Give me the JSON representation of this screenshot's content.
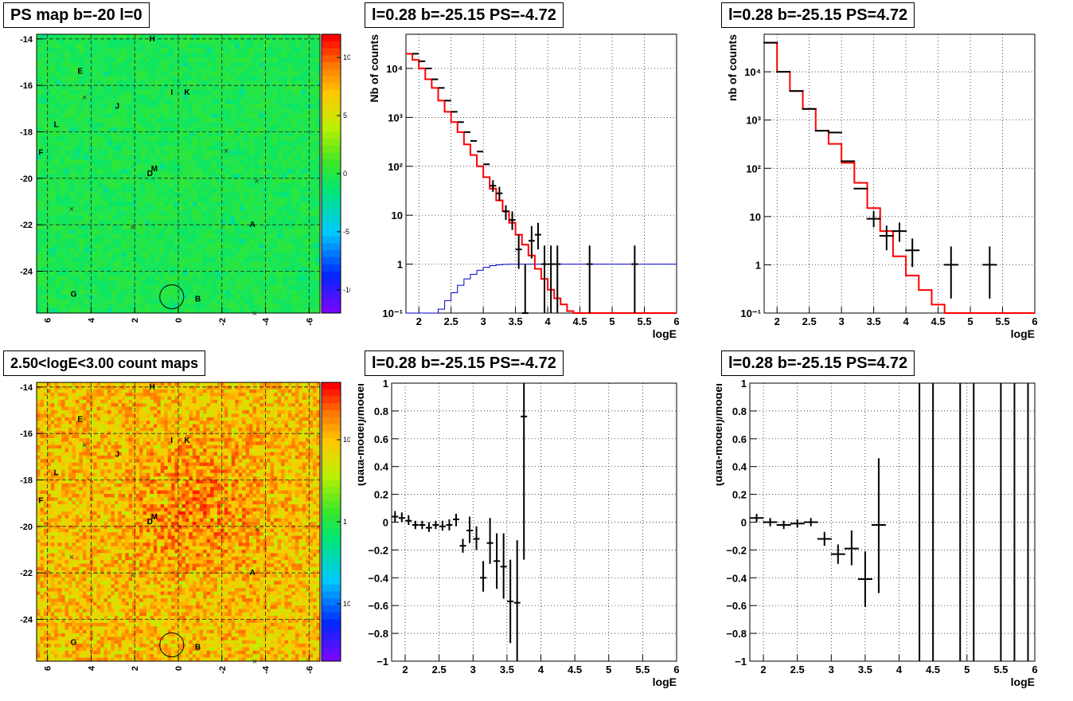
{
  "panels": [
    {
      "id": "map1",
      "title": "PS map b=-20 l=0"
    },
    {
      "id": "spec1",
      "title": "l=0.28 b=-25.15 PS=-4.72"
    },
    {
      "id": "spec2",
      "title": "l=0.28 b=-25.15 PS=4.72"
    },
    {
      "id": "map2",
      "title": "2.50<logE<3.00 count maps"
    },
    {
      "id": "res1",
      "title": "l=0.28 b=-25.15 PS=-4.72"
    },
    {
      "id": "res2",
      "title": "l=0.28 b=-25.15 PS=4.72"
    }
  ],
  "chart_data": [
    {
      "type": "heatmap",
      "panel": "map1",
      "title": "PS map b=-20 l=0",
      "xlim": [
        6.5,
        -6.5
      ],
      "ylim": [
        -25.8,
        -13.8
      ],
      "xticks": [
        "6",
        "4",
        "2",
        "0",
        "-2",
        "-4",
        "-6"
      ],
      "xtick_values": [
        6,
        4,
        2,
        0,
        -2,
        -4,
        -6
      ],
      "yticks": [
        "-14",
        "-16",
        "-18",
        "-20",
        "-22",
        "-24"
      ],
      "ytick_values": [
        -14,
        -16,
        -18,
        -20,
        -22,
        -24
      ],
      "colorscale": {
        "type": "linear",
        "range": [
          -12,
          12
        ],
        "ticks": [
          "10",
          "5",
          "0",
          "-5",
          "-10"
        ],
        "tick_values": [
          10,
          5,
          0,
          -5,
          -10
        ]
      },
      "background_color": "#33e048",
      "sources": [
        {
          "label": "H",
          "x": 1.2,
          "y": -14.1
        },
        {
          "label": "E",
          "x": 4.5,
          "y": -15.5
        },
        {
          "label": "I",
          "x": 0.3,
          "y": -16.4
        },
        {
          "label": "K",
          "x": -0.4,
          "y": -16.4
        },
        {
          "label": "J",
          "x": 2.8,
          "y": -17.0
        },
        {
          "label": "L",
          "x": 5.6,
          "y": -17.8
        },
        {
          "label": "F",
          "x": 6.3,
          "y": -19.0
        },
        {
          "label": "D",
          "x": 1.3,
          "y": -19.9
        },
        {
          "label": "M",
          "x": 1.1,
          "y": -19.7
        },
        {
          "label": "A",
          "x": -3.4,
          "y": -22.1
        },
        {
          "label": "G",
          "x": 4.8,
          "y": -25.1
        },
        {
          "label": "B",
          "x": -0.9,
          "y": -25.3
        }
      ],
      "crosses": [
        {
          "x": 4.3,
          "y": -16.5
        },
        {
          "x": -2.2,
          "y": -18.8
        },
        {
          "x": -3.6,
          "y": -20.1
        },
        {
          "x": 4.9,
          "y": -21.3
        },
        {
          "x": 2.1,
          "y": -22.1
        },
        {
          "x": -3.5,
          "y": -25.8
        }
      ],
      "circle": {
        "x": 0.3,
        "y": -25.1,
        "r": 0.55
      }
    },
    {
      "type": "line",
      "panel": "spec1",
      "title": "l=0.28 b=-25.15 PS=-4.72",
      "xlabel": "logE",
      "ylabel": "Nb of counts",
      "yscale": "log",
      "xlim": [
        1.8,
        6
      ],
      "ylim": [
        0.1,
        50000
      ],
      "xticks": [
        "2",
        "2.5",
        "3",
        "3.5",
        "4",
        "4.5",
        "5",
        "5.5",
        "6"
      ],
      "xtick_values": [
        2,
        2.5,
        3,
        3.5,
        4,
        4.5,
        5,
        5.5,
        6
      ],
      "yticks": [
        "10⁻¹",
        "1",
        "10",
        "10²",
        "10³",
        "10⁴"
      ],
      "ytick_values": [
        0.1,
        1,
        10,
        100,
        1000,
        10000
      ],
      "grid": true,
      "series": [
        {
          "kind": "step",
          "color": "#ff0000",
          "edges": [
            1.8,
            1.9,
            2.0,
            2.1,
            2.2,
            2.3,
            2.4,
            2.5,
            2.6,
            2.7,
            2.8,
            2.9,
            3.0,
            3.1,
            3.2,
            3.3,
            3.4,
            3.5,
            3.6,
            3.7,
            3.8,
            3.9,
            4.0,
            4.1,
            4.2,
            4.3,
            4.4,
            6.0
          ],
          "values": [
            20000,
            15000,
            10000,
            6000,
            4000,
            2200,
            1300,
            800,
            500,
            280,
            170,
            100,
            60,
            35,
            20,
            12,
            7,
            4,
            2.5,
            1.5,
            0.8,
            0.5,
            0.3,
            0.2,
            0.15,
            0.11,
            0.1
          ]
        },
        {
          "kind": "step",
          "color": "#0000cc",
          "edges": [
            1.8,
            2.2,
            2.3,
            2.4,
            2.5,
            2.6,
            2.7,
            2.8,
            2.9,
            3.0,
            3.1,
            3.2,
            3.3,
            3.4,
            3.5,
            6.0
          ],
          "values": [
            0.1,
            0.1,
            0.12,
            0.18,
            0.26,
            0.37,
            0.5,
            0.62,
            0.75,
            0.86,
            0.93,
            0.97,
            0.99,
            1.0,
            1.0
          ]
        },
        {
          "kind": "points",
          "color": "#000000",
          "x": [
            1.95,
            2.05,
            2.15,
            2.25,
            2.35,
            2.45,
            2.55,
            2.65,
            2.75,
            2.85,
            2.95,
            3.05,
            3.15,
            3.25,
            3.35,
            3.45,
            3.55,
            3.65,
            3.75,
            3.85,
            3.95,
            4.05,
            4.15,
            4.65,
            5.35
          ],
          "y": [
            20000,
            14000,
            10000,
            6000,
            4000,
            2200,
            1300,
            800,
            500,
            330,
            200,
            110,
            40,
            28,
            12,
            8,
            2,
            0.06,
            3,
            4,
            1,
            1,
            1,
            1,
            1
          ],
          "ylo": [
            0,
            0,
            0,
            0,
            0,
            0,
            0,
            0,
            0,
            0,
            0,
            0,
            30,
            20,
            8,
            5,
            0.8,
            0.06,
            1.3,
            2,
            0.1,
            0.1,
            0.1,
            0.1,
            0.1
          ],
          "yhi": [
            0,
            0,
            0,
            0,
            0,
            0,
            0,
            0,
            0,
            0,
            0,
            0,
            52,
            38,
            16,
            12,
            4,
            1,
            6,
            7,
            2.4,
            2.4,
            2.4,
            2.4,
            2.4
          ]
        }
      ]
    },
    {
      "type": "line",
      "panel": "spec2",
      "title": "l=0.28 b=-25.15 PS=4.72",
      "xlabel": "logE",
      "ylabel": "nb of counts",
      "yscale": "log",
      "xlim": [
        1.8,
        6
      ],
      "ylim": [
        0.1,
        60000
      ],
      "xticks": [
        "2",
        "2.5",
        "3",
        "3.5",
        "4",
        "4.5",
        "5",
        "5.5",
        "6"
      ],
      "xtick_values": [
        2,
        2.5,
        3,
        3.5,
        4,
        4.5,
        5,
        5.5,
        6
      ],
      "yticks": [
        "10⁻¹",
        "1",
        "10",
        "10²",
        "10³",
        "10⁴"
      ],
      "ytick_values": [
        0.1,
        1,
        10,
        100,
        1000,
        10000
      ],
      "grid": true,
      "series": [
        {
          "kind": "step",
          "color": "#ff0000",
          "edges": [
            1.8,
            2.0,
            2.2,
            2.4,
            2.6,
            2.8,
            3.0,
            3.2,
            3.4,
            3.6,
            3.8,
            4.0,
            4.2,
            4.4,
            4.6,
            6.0
          ],
          "values": [
            40000,
            10000,
            4000,
            1700,
            600,
            320,
            130,
            50,
            15,
            5,
            1.5,
            0.6,
            0.3,
            0.15,
            0.1
          ]
        },
        {
          "kind": "points",
          "color": "#000000",
          "x": [
            1.9,
            2.1,
            2.3,
            2.5,
            2.7,
            2.9,
            3.1,
            3.3,
            3.5,
            3.7,
            3.9,
            4.1,
            4.7,
            5.3
          ],
          "y": [
            40000,
            10000,
            4000,
            1700,
            600,
            550,
            140,
            38,
            9,
            4,
            5,
            2,
            1,
            1
          ],
          "ylo": [
            0,
            0,
            0,
            0,
            0,
            0,
            0,
            0,
            6,
            2,
            3,
            0.9,
            0.2,
            0.2
          ],
          "yhi": [
            0,
            0,
            0,
            0,
            0,
            0,
            0,
            0,
            13,
            6.5,
            7.5,
            3.5,
            2.4,
            2.4
          ]
        }
      ]
    },
    {
      "type": "heatmap",
      "panel": "map2",
      "title": "2.50<logE<3.00 count maps",
      "xlim": [
        6.5,
        -6.5
      ],
      "ylim": [
        -25.8,
        -13.8
      ],
      "xticks": [
        "6",
        "4",
        "2",
        "0",
        "-2",
        "-4",
        "-6"
      ],
      "xtick_values": [
        6,
        4,
        2,
        0,
        -2,
        -4,
        -6
      ],
      "yticks": [
        "-14",
        "-16",
        "-18",
        "-20",
        "-22",
        "-24"
      ],
      "ytick_values": [
        -14,
        -16,
        -18,
        -20,
        -22,
        -24
      ],
      "colorscale": {
        "type": "log",
        "range": [
          0.02,
          50
        ],
        "ticks": [
          "10",
          "1",
          "10⁻¹"
        ],
        "tick_values": [
          10,
          1,
          0.1
        ]
      },
      "background_color": "#f28a2a",
      "sources": [
        {
          "label": "H",
          "x": 1.2,
          "y": -14.1
        },
        {
          "label": "E",
          "x": 4.5,
          "y": -15.5
        },
        {
          "label": "I",
          "x": 0.3,
          "y": -16.4
        },
        {
          "label": "K",
          "x": -0.4,
          "y": -16.4
        },
        {
          "label": "J",
          "x": 2.8,
          "y": -17.0
        },
        {
          "label": "L",
          "x": 5.6,
          "y": -17.8
        },
        {
          "label": "F",
          "x": 6.3,
          "y": -19.0
        },
        {
          "label": "D",
          "x": 1.3,
          "y": -19.9
        },
        {
          "label": "M",
          "x": 1.1,
          "y": -19.7
        },
        {
          "label": "A",
          "x": -3.4,
          "y": -22.1
        },
        {
          "label": "G",
          "x": 4.8,
          "y": -25.1
        },
        {
          "label": "B",
          "x": -0.9,
          "y": -25.3
        }
      ],
      "crosses": [
        {
          "x": 4.3,
          "y": -16.5
        },
        {
          "x": -2.2,
          "y": -18.8
        },
        {
          "x": -3.6,
          "y": -20.1
        },
        {
          "x": 4.9,
          "y": -21.3
        },
        {
          "x": 2.1,
          "y": -22.1
        },
        {
          "x": -3.5,
          "y": -25.8
        }
      ],
      "circle": {
        "x": 0.3,
        "y": -25.1,
        "r": 0.55
      }
    },
    {
      "type": "scatter",
      "panel": "res1",
      "title": "l=0.28 b=-25.15 PS=-4.72",
      "xlabel": "logE",
      "ylabel": "(data-model)/model",
      "xlim": [
        1.8,
        6
      ],
      "ylim": [
        -1,
        1
      ],
      "xticks": [
        "2",
        "2.5",
        "3",
        "3.5",
        "4",
        "4.5",
        "5",
        "5.5",
        "6"
      ],
      "xtick_values": [
        2,
        2.5,
        3,
        3.5,
        4,
        4.5,
        5,
        5.5,
        6
      ],
      "yticks": [
        "1",
        "0.8",
        "0.6",
        "0.4",
        "0.2",
        "0",
        "−0.2",
        "−0.4",
        "−0.6",
        "−0.8",
        "−1"
      ],
      "ytick_values": [
        1,
        0.8,
        0.6,
        0.4,
        0.2,
        0,
        -0.2,
        -0.4,
        -0.6,
        -0.8,
        -1
      ],
      "grid": true,
      "points": {
        "x": [
          1.85,
          1.95,
          2.05,
          2.15,
          2.25,
          2.35,
          2.45,
          2.55,
          2.65,
          2.75,
          2.85,
          2.95,
          3.05,
          3.15,
          3.25,
          3.35,
          3.45,
          3.55,
          3.65,
          3.75
        ],
        "y": [
          0.04,
          0.03,
          0.01,
          -0.02,
          -0.02,
          -0.04,
          -0.02,
          -0.03,
          -0.02,
          0.02,
          -0.17,
          -0.06,
          -0.12,
          -0.4,
          -0.15,
          -0.28,
          -0.32,
          -0.57,
          -0.58,
          0.76
        ],
        "ylo": [
          0.0,
          0.0,
          -0.02,
          -0.05,
          -0.05,
          -0.07,
          -0.05,
          -0.06,
          -0.06,
          -0.03,
          -0.22,
          -0.15,
          -0.2,
          -0.5,
          -0.3,
          -0.48,
          -0.55,
          -0.87,
          -1.0,
          -0.27
        ],
        "yhi": [
          0.08,
          0.07,
          0.05,
          0.01,
          0.01,
          0.0,
          0.01,
          0.01,
          0.02,
          0.06,
          -0.12,
          0.04,
          -0.03,
          -0.28,
          0.03,
          -0.08,
          -0.08,
          -0.27,
          -0.13,
          1.0
        ]
      }
    },
    {
      "type": "scatter",
      "panel": "res2",
      "title": "l=0.28 b=-25.15 PS=4.72",
      "xlabel": "logE",
      "ylabel": "(data-model)/model",
      "xlim": [
        1.8,
        6
      ],
      "ylim": [
        -1,
        1
      ],
      "xticks": [
        "2",
        "2.5",
        "3",
        "3.5",
        "4",
        "4.5",
        "5",
        "5.5",
        "6"
      ],
      "xtick_values": [
        2,
        2.5,
        3,
        3.5,
        4,
        4.5,
        5,
        5.5,
        6
      ],
      "yticks": [
        "1",
        "0.8",
        "0.6",
        "0.4",
        "0.2",
        "0",
        "−0.2",
        "−0.4",
        "−0.6",
        "−0.8",
        "−1"
      ],
      "ytick_values": [
        1,
        0.8,
        0.6,
        0.4,
        0.2,
        0,
        -0.2,
        -0.4,
        -0.6,
        -0.8,
        -1
      ],
      "grid": true,
      "points": {
        "x": [
          1.9,
          2.1,
          2.3,
          2.5,
          2.7,
          2.9,
          3.1,
          3.3,
          3.5,
          3.7
        ],
        "y": [
          0.03,
          0.0,
          -0.02,
          -0.01,
          0.0,
          -0.12,
          -0.23,
          -0.19,
          -0.41,
          -0.02
        ],
        "ylo": [
          0.0,
          -0.03,
          -0.05,
          -0.04,
          -0.03,
          -0.17,
          -0.3,
          -0.31,
          -0.61,
          -0.51
        ],
        "yhi": [
          0.06,
          0.03,
          0.01,
          0.02,
          0.03,
          -0.07,
          -0.16,
          -0.06,
          -0.21,
          0.46
        ]
      },
      "vertical_bars_x": [
        4.3,
        4.5,
        4.9,
        5.1,
        5.5,
        5.7,
        5.9
      ]
    }
  ]
}
